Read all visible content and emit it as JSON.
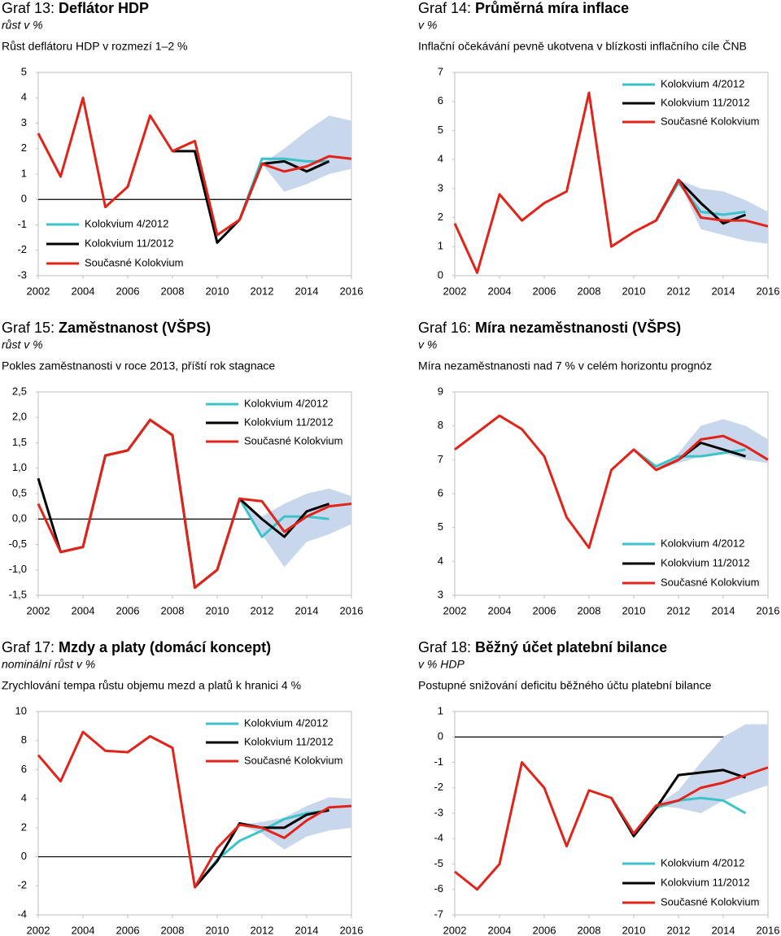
{
  "chart_data": [
    {
      "type": "line",
      "label": "Graf 13:",
      "title": "Deflátor HDP",
      "subtitle": "růst v %",
      "description": "Růst deflátoru HDP v rozmezí 1–2 %",
      "x": [
        2002,
        2003,
        2004,
        2005,
        2006,
        2007,
        2008,
        2009,
        2010,
        2011,
        2012,
        2013,
        2014,
        2015,
        2016
      ],
      "xlim": [
        2002,
        2016
      ],
      "xticks": [
        2002,
        2004,
        2006,
        2008,
        2010,
        2012,
        2014,
        2016
      ],
      "ylim": [
        -3,
        5
      ],
      "yticks": [
        -3,
        -2,
        -1,
        0,
        1,
        2,
        3,
        4,
        5
      ],
      "legend": "lower left",
      "band": {
        "color": "#c8d7eb",
        "lower": [
          null,
          null,
          null,
          null,
          null,
          null,
          null,
          null,
          null,
          null,
          1.4,
          0.3,
          0.6,
          1.0,
          1.2
        ],
        "upper": [
          null,
          null,
          null,
          null,
          null,
          null,
          null,
          null,
          null,
          null,
          1.4,
          2.0,
          2.7,
          3.3,
          3.1
        ]
      },
      "series": [
        {
          "name": "Kolokvium 4/2012",
          "color": "#3cc3c9",
          "values": [
            null,
            null,
            null,
            null,
            null,
            null,
            null,
            null,
            null,
            -0.8,
            1.6,
            1.6,
            1.5,
            1.5,
            null
          ]
        },
        {
          "name": "Kolokvium 11/2012",
          "color": "#000000",
          "values": [
            null,
            null,
            null,
            null,
            null,
            null,
            1.9,
            1.9,
            -1.7,
            -0.8,
            1.4,
            1.5,
            1.1,
            1.5,
            null
          ]
        },
        {
          "name": "Současné Kolokvium",
          "color": "#e2231a",
          "values": [
            2.6,
            0.9,
            4.0,
            -0.3,
            0.5,
            3.3,
            1.9,
            2.3,
            -1.4,
            -0.8,
            1.4,
            1.1,
            1.3,
            1.7,
            1.6
          ]
        }
      ]
    },
    {
      "type": "line",
      "label": "Graf 14:",
      "title": "Průměrná míra inflace",
      "subtitle": "v %",
      "description": "Inflační očekávání pevně ukotvena v blízkosti inflačního cíle ČNB",
      "x": [
        2002,
        2003,
        2004,
        2005,
        2006,
        2007,
        2008,
        2009,
        2010,
        2011,
        2012,
        2013,
        2014,
        2015,
        2016
      ],
      "xlim": [
        2002,
        2016
      ],
      "xticks": [
        2002,
        2004,
        2006,
        2008,
        2010,
        2012,
        2014,
        2016
      ],
      "ylim": [
        0,
        7
      ],
      "yticks": [
        0,
        1,
        2,
        3,
        4,
        5,
        6,
        7
      ],
      "legend": "upper right",
      "band": {
        "color": "#c8d7eb",
        "lower": [
          null,
          null,
          null,
          null,
          null,
          null,
          null,
          null,
          null,
          null,
          3.3,
          1.6,
          1.4,
          1.2,
          1.1
        ],
        "upper": [
          null,
          null,
          null,
          null,
          null,
          null,
          null,
          null,
          null,
          null,
          3.3,
          3.0,
          2.9,
          2.6,
          2.2
        ]
      },
      "series": [
        {
          "name": "Kolokvium 4/2012",
          "color": "#3cc3c9",
          "values": [
            null,
            null,
            null,
            null,
            null,
            null,
            null,
            null,
            null,
            1.9,
            3.2,
            2.2,
            2.1,
            2.2,
            null
          ]
        },
        {
          "name": "Kolokvium 11/2012",
          "color": "#000000",
          "values": [
            null,
            null,
            null,
            null,
            null,
            null,
            null,
            null,
            null,
            1.9,
            3.3,
            2.5,
            1.8,
            2.1,
            null
          ]
        },
        {
          "name": "Současné Kolokvium",
          "color": "#e2231a",
          "values": [
            1.8,
            0.1,
            2.8,
            1.9,
            2.5,
            2.9,
            6.3,
            1.0,
            1.5,
            1.9,
            3.3,
            2.0,
            1.9,
            1.9,
            1.7
          ]
        }
      ]
    },
    {
      "type": "line",
      "label": "Graf 15:",
      "title": "Zaměstnanost (VŠPS)",
      "subtitle": "růst v %",
      "description": "Pokles zaměstnanosti v roce 2013, příští rok stagnace",
      "x": [
        2002,
        2003,
        2004,
        2005,
        2006,
        2007,
        2008,
        2009,
        2010,
        2011,
        2012,
        2013,
        2014,
        2015,
        2016
      ],
      "xlim": [
        2002,
        2016
      ],
      "xticks": [
        2002,
        2004,
        2006,
        2008,
        2010,
        2012,
        2014,
        2016
      ],
      "ylim": [
        -1.5,
        2.5
      ],
      "yticks": [
        {
          "value": -1.5,
          "label": "-1,5"
        },
        {
          "value": -1,
          "label": "-1,0"
        },
        {
          "value": -0.5,
          "label": "-0,5"
        },
        {
          "value": 0,
          "label": "0,0"
        },
        {
          "value": 0.5,
          "label": "0,5"
        },
        {
          "value": 1,
          "label": "1,0"
        },
        {
          "value": 1.5,
          "label": "1,5"
        },
        {
          "value": 2,
          "label": "2,0"
        },
        {
          "value": 2.5,
          "label": "2,5"
        }
      ],
      "legend": "upper right",
      "band": {
        "color": "#c8d7eb",
        "lower": [
          null,
          null,
          null,
          null,
          null,
          null,
          null,
          null,
          null,
          0.4,
          -0.3,
          -0.95,
          -0.45,
          -0.3,
          -0.1
        ],
        "upper": [
          null,
          null,
          null,
          null,
          null,
          null,
          null,
          null,
          null,
          0.4,
          0.05,
          0.3,
          0.5,
          0.6,
          0.45
        ]
      },
      "series": [
        {
          "name": "Kolokvium 4/2012",
          "color": "#3cc3c9",
          "values": [
            null,
            null,
            null,
            null,
            null,
            null,
            null,
            null,
            null,
            0.4,
            -0.35,
            0.05,
            0.05,
            0.0,
            null
          ]
        },
        {
          "name": "Kolokvium 11/2012",
          "color": "#000000",
          "values": [
            0.8,
            -0.65,
            -0.55,
            1.25,
            1.35,
            1.95,
            1.65,
            -1.35,
            -1.0,
            0.4,
            0.0,
            -0.35,
            0.15,
            0.3,
            null
          ]
        },
        {
          "name": "Současné Kolokvium",
          "color": "#e2231a",
          "values": [
            0.3,
            -0.65,
            -0.55,
            1.25,
            1.35,
            1.95,
            1.65,
            -1.35,
            -1.0,
            0.4,
            0.35,
            -0.25,
            0.05,
            0.25,
            0.3
          ]
        }
      ]
    },
    {
      "type": "line",
      "label": "Graf 16:",
      "title": "Míra nezaměstnanosti (VŠPS)",
      "subtitle": "v %",
      "description": "Míra nezaměstnanosti nad 7 % v celém horizontu prognóz",
      "x": [
        2002,
        2003,
        2004,
        2005,
        2006,
        2007,
        2008,
        2009,
        2010,
        2011,
        2012,
        2013,
        2014,
        2015,
        2016
      ],
      "xlim": [
        2002,
        2016
      ],
      "xticks": [
        2002,
        2004,
        2006,
        2008,
        2010,
        2012,
        2014,
        2016
      ],
      "ylim": [
        3,
        9
      ],
      "yticks": [
        3,
        4,
        5,
        6,
        7,
        8,
        9
      ],
      "legend": "lower right",
      "band": {
        "color": "#c8d7eb",
        "lower": [
          null,
          null,
          null,
          null,
          null,
          null,
          null,
          null,
          null,
          6.7,
          6.9,
          7.1,
          7.2,
          7.0,
          6.9
        ],
        "upper": [
          null,
          null,
          null,
          null,
          null,
          null,
          null,
          null,
          null,
          6.7,
          7.2,
          8.0,
          8.2,
          8.0,
          7.6
        ]
      },
      "series": [
        {
          "name": "Kolokvium 4/2012",
          "color": "#3cc3c9",
          "values": [
            null,
            null,
            null,
            null,
            null,
            null,
            null,
            null,
            7.3,
            6.8,
            7.1,
            7.1,
            7.2,
            7.3,
            null
          ]
        },
        {
          "name": "Kolokvium 11/2012",
          "color": "#000000",
          "values": [
            null,
            null,
            null,
            null,
            null,
            null,
            null,
            null,
            null,
            6.7,
            7.0,
            7.5,
            7.3,
            7.1,
            null
          ]
        },
        {
          "name": "Současné Kolokvium",
          "color": "#e2231a",
          "values": [
            7.3,
            7.8,
            8.3,
            7.9,
            7.1,
            5.3,
            4.4,
            6.7,
            7.3,
            6.7,
            7.0,
            7.6,
            7.7,
            7.4,
            7.0
          ]
        }
      ]
    },
    {
      "type": "line",
      "label": "Graf 17:",
      "title": "Mzdy a platy (domácí koncept)",
      "subtitle": "nominální růst v %",
      "description": "Zrychlování tempa růstu objemu mezd a platů k hranici 4 %",
      "x": [
        2002,
        2003,
        2004,
        2005,
        2006,
        2007,
        2008,
        2009,
        2010,
        2011,
        2012,
        2013,
        2014,
        2015,
        2016
      ],
      "xlim": [
        2002,
        2016
      ],
      "xticks": [
        2002,
        2004,
        2006,
        2008,
        2010,
        2012,
        2014,
        2016
      ],
      "ylim": [
        -4,
        10
      ],
      "yticks": [
        -4,
        -2,
        0,
        2,
        4,
        6,
        8,
        10
      ],
      "legend": "upper right",
      "band": {
        "color": "#c8d7eb",
        "lower": [
          null,
          null,
          null,
          null,
          null,
          null,
          null,
          null,
          null,
          2.2,
          1.6,
          0.5,
          1.4,
          1.8,
          2.0
        ],
        "upper": [
          null,
          null,
          null,
          null,
          null,
          null,
          null,
          null,
          null,
          2.2,
          2.4,
          2.7,
          3.5,
          4.1,
          4.0
        ]
      },
      "series": [
        {
          "name": "Kolokvium 4/2012",
          "color": "#3cc3c9",
          "values": [
            null,
            null,
            null,
            null,
            null,
            null,
            null,
            -2.1,
            -0.2,
            1.1,
            1.8,
            2.6,
            3.0,
            3.2,
            null
          ]
        },
        {
          "name": "Kolokvium 11/2012",
          "color": "#000000",
          "values": [
            null,
            null,
            null,
            null,
            null,
            null,
            null,
            -2.1,
            -0.3,
            2.3,
            2.0,
            2.0,
            2.9,
            3.2,
            null
          ]
        },
        {
          "name": "Současné Kolokvium",
          "color": "#e2231a",
          "values": [
            7.0,
            5.2,
            8.6,
            7.3,
            7.2,
            8.3,
            7.5,
            -2.1,
            0.6,
            2.2,
            2.0,
            1.3,
            2.5,
            3.4,
            3.5
          ]
        }
      ]
    },
    {
      "type": "line",
      "label": "Graf 18:",
      "title": "Běžný účet platební bilance",
      "subtitle": "v % HDP",
      "description": "Postupné snižování deficitu běžného účtu platební bilance",
      "x": [
        2002,
        2003,
        2004,
        2005,
        2006,
        2007,
        2008,
        2009,
        2010,
        2011,
        2012,
        2013,
        2014,
        2015,
        2016
      ],
      "xlim": [
        2002,
        2016
      ],
      "xticks": [
        2002,
        2004,
        2006,
        2008,
        2010,
        2012,
        2014,
        2016
      ],
      "ylim": [
        -7,
        1
      ],
      "yticks": [
        -7,
        -6,
        -5,
        -4,
        -3,
        -2,
        -1,
        0,
        1
      ],
      "legend": "lower right",
      "band": {
        "color": "#c8d7eb",
        "lower": [
          null,
          null,
          null,
          null,
          null,
          null,
          null,
          null,
          null,
          -2.7,
          -2.8,
          -3.0,
          -2.5,
          -2.2,
          -1.9
        ],
        "upper": [
          null,
          null,
          null,
          null,
          null,
          null,
          null,
          null,
          null,
          -2.7,
          -2.1,
          -1.0,
          0.0,
          0.5,
          0.5
        ]
      },
      "series": [
        {
          "name": "Kolokvium 4/2012",
          "color": "#3cc3c9",
          "values": [
            null,
            null,
            null,
            null,
            null,
            null,
            null,
            -2.4,
            -3.9,
            -2.8,
            -2.5,
            -2.4,
            -2.5,
            -3.0,
            null
          ]
        },
        {
          "name": "Kolokvium 11/2012",
          "color": "#000000",
          "values": [
            null,
            null,
            null,
            null,
            null,
            null,
            null,
            -2.4,
            -3.9,
            -2.8,
            -1.5,
            -1.4,
            -1.3,
            -1.6,
            null
          ]
        },
        {
          "name": "Současné Kolokvium",
          "color": "#e2231a",
          "values": [
            -5.3,
            -6.0,
            -5.0,
            -1.0,
            -2.0,
            -4.3,
            -2.1,
            -2.4,
            -3.8,
            -2.7,
            -2.5,
            -2.0,
            -1.8,
            -1.5,
            -1.2
          ]
        }
      ]
    }
  ]
}
